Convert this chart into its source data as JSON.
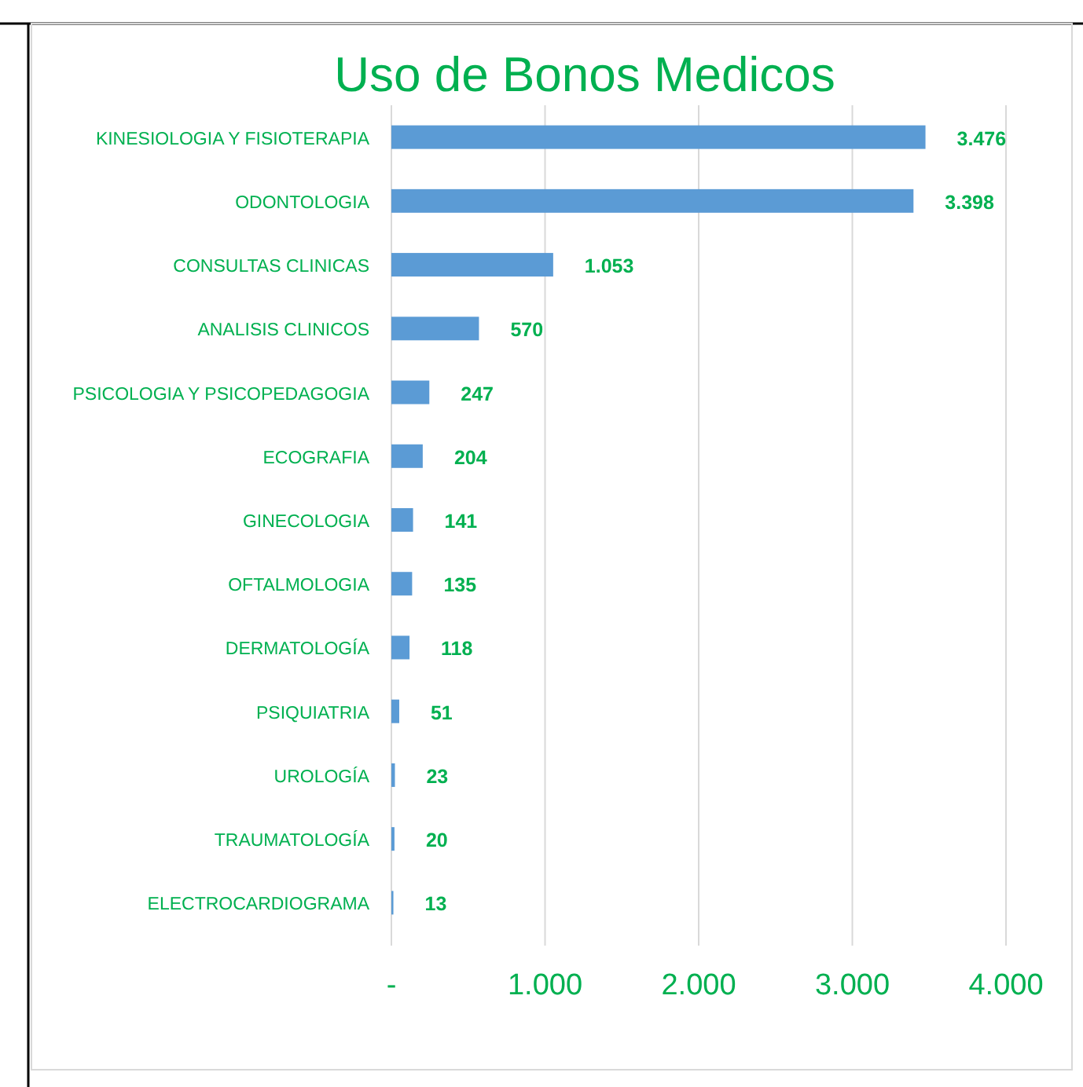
{
  "chart_data": {
    "type": "bar",
    "orientation": "horizontal",
    "title": "Uso de Bonos Medicos",
    "categories": [
      "KINESIOLOGIA Y FISIOTERAPIA",
      "ODONTOLOGIA",
      "CONSULTAS CLINICAS",
      "ANALISIS CLINICOS",
      "PSICOLOGIA Y PSICOPEDAGOGIA",
      "ECOGRAFIA",
      "GINECOLOGIA",
      "OFTALMOLOGIA",
      "DERMATOLOGÍA",
      "PSIQUIATRIA",
      "UROLOGÍA",
      "TRAUMATOLOGÍA",
      "ELECTROCARDIOGRAMA"
    ],
    "values": [
      3476,
      3398,
      1053,
      570,
      247,
      204,
      141,
      135,
      118,
      51,
      23,
      20,
      13
    ],
    "value_labels": [
      "3.476",
      "3.398",
      "1.053",
      "570",
      "247",
      "204",
      "141",
      "135",
      "118",
      "51",
      "23",
      "20",
      "13"
    ],
    "color": "#5b9bd5",
    "xlim": [
      0,
      4000
    ],
    "xticks": [
      {
        "value": 0,
        "label": "-"
      },
      {
        "value": 1000,
        "label": "1.000"
      },
      {
        "value": 2000,
        "label": "2.000"
      },
      {
        "value": 3000,
        "label": "3.000"
      },
      {
        "value": 4000,
        "label": "4.000"
      }
    ],
    "grid": "x"
  }
}
